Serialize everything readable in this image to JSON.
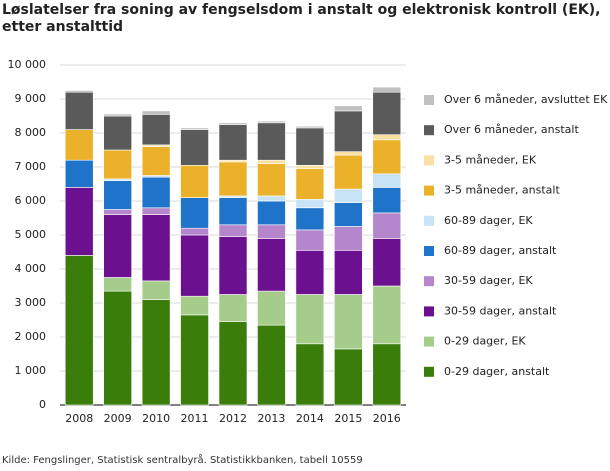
{
  "chart_data": {
    "type": "stacked-bar",
    "title": "Løslatelser fra soning av fengselsdom i anstalt og elektronisk kontroll (EK), etter anstalttid",
    "source": "Kilde: Fengslinger, Statistisk sentralbyrå. Statistikkbanken, tabell 10559",
    "categories": [
      "2008",
      "2009",
      "2010",
      "2011",
      "2012",
      "2013",
      "2014",
      "2015",
      "2016"
    ],
    "series": [
      {
        "name": "0-29 dager, anstalt",
        "color": "#3a7d0a",
        "values": [
          4400,
          3350,
          3100,
          2650,
          2450,
          2350,
          1800,
          1650,
          1800
        ]
      },
      {
        "name": "0-29 dager, EK",
        "color": "#a5cc8b",
        "values": [
          0,
          400,
          550,
          550,
          800,
          1000,
          1450,
          1600,
          1700
        ]
      },
      {
        "name": "30-59 dager, anstalt",
        "color": "#6b1190",
        "values": [
          2000,
          1850,
          1950,
          1800,
          1700,
          1550,
          1300,
          1300,
          1400
        ]
      },
      {
        "name": "30-59 dager, EK",
        "color": "#b586cc",
        "values": [
          0,
          150,
          200,
          200,
          350,
          400,
          600,
          700,
          750
        ]
      },
      {
        "name": "60-89 dager, anstalt",
        "color": "#1f73c9",
        "values": [
          800,
          850,
          900,
          900,
          800,
          700,
          650,
          700,
          750
        ]
      },
      {
        "name": "60-89 dager, EK",
        "color": "#c8e2f6",
        "values": [
          0,
          50,
          50,
          0,
          50,
          150,
          250,
          400,
          400
        ]
      },
      {
        "name": "3-5 måneder, anstalt",
        "color": "#ebb12a",
        "values": [
          900,
          850,
          850,
          950,
          1000,
          950,
          900,
          1000,
          1000
        ]
      },
      {
        "name": "3-5 måneder, EK",
        "color": "#f8e0a2",
        "values": [
          0,
          0,
          50,
          0,
          50,
          100,
          100,
          100,
          150
        ]
      },
      {
        "name": "Over 6 måneder, anstalt",
        "color": "#5a5a5a",
        "values": [
          1100,
          1000,
          900,
          1050,
          1050,
          1100,
          1100,
          1200,
          1250
        ]
      },
      {
        "name": "Over 6 måneder, avsluttet EK",
        "color": "#c0c0c0",
        "values": [
          50,
          60,
          100,
          50,
          50,
          50,
          50,
          150,
          150
        ]
      }
    ],
    "ylim": [
      0,
      10000
    ],
    "yticks": [
      0,
      {
        "value": 1000,
        "label": "1 000"
      },
      {
        "value": 2000,
        "label": "2 000"
      },
      {
        "value": 3000,
        "label": "3 000"
      },
      {
        "value": 4000,
        "label": "4 000"
      },
      {
        "value": 5000,
        "label": "5 000"
      },
      {
        "value": 6000,
        "label": "6 000"
      },
      {
        "value": 7000,
        "label": "7 000"
      },
      {
        "value": 8000,
        "label": "8 000"
      },
      {
        "value": 9000,
        "label": "9 000"
      },
      {
        "value": 10000,
        "label": "10 000"
      }
    ],
    "grid": true
  }
}
